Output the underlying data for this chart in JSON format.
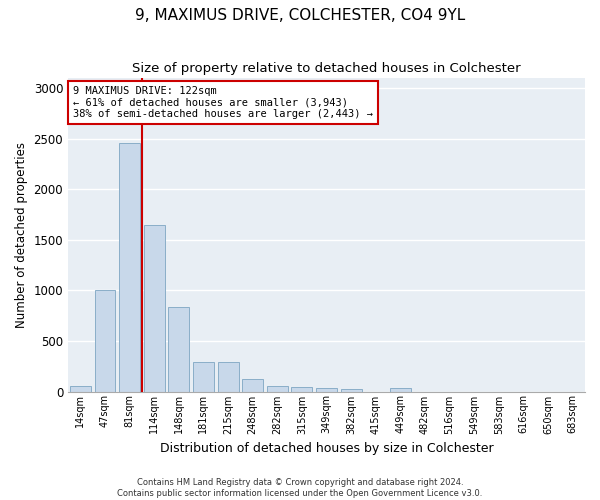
{
  "title": "9, MAXIMUS DRIVE, COLCHESTER, CO4 9YL",
  "subtitle": "Size of property relative to detached houses in Colchester",
  "xlabel": "Distribution of detached houses by size in Colchester",
  "ylabel": "Number of detached properties",
  "categories": [
    "14sqm",
    "47sqm",
    "81sqm",
    "114sqm",
    "148sqm",
    "181sqm",
    "215sqm",
    "248sqm",
    "282sqm",
    "315sqm",
    "349sqm",
    "382sqm",
    "415sqm",
    "449sqm",
    "482sqm",
    "516sqm",
    "549sqm",
    "583sqm",
    "616sqm",
    "650sqm",
    "683sqm"
  ],
  "values": [
    55,
    1000,
    2460,
    1650,
    840,
    290,
    290,
    120,
    50,
    45,
    35,
    25,
    0,
    30,
    0,
    0,
    0,
    0,
    0,
    0,
    0
  ],
  "bar_color": "#c8d8ea",
  "bar_edge_color": "#8aaec8",
  "vline_color": "#cc0000",
  "annotation_text": "9 MAXIMUS DRIVE: 122sqm\n← 61% of detached houses are smaller (3,943)\n38% of semi-detached houses are larger (2,443) →",
  "annotation_box_facecolor": "white",
  "annotation_box_edgecolor": "#cc0000",
  "ylim": [
    0,
    3100
  ],
  "yticks": [
    0,
    500,
    1000,
    1500,
    2000,
    2500,
    3000
  ],
  "plot_bg_color": "#e8eef4",
  "footer_text": "Contains HM Land Registry data © Crown copyright and database right 2024.\nContains public sector information licensed under the Open Government Licence v3.0.",
  "title_fontsize": 11,
  "subtitle_fontsize": 9.5,
  "xlabel_fontsize": 9,
  "ylabel_fontsize": 8.5,
  "annotation_fontsize": 7.5,
  "footer_fontsize": 6
}
